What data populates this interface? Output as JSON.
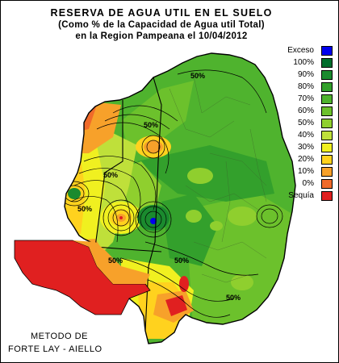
{
  "title": {
    "line1": "RESERVA DE AGUA UTIL EN EL SUELO",
    "line2": "(Como % de la Capacidad de Agua util Total)",
    "line3": "en la Region Pampeana el 10/04/2012"
  },
  "legend": [
    {
      "label": "Exceso",
      "color": "#0000ee"
    },
    {
      "label": "100%",
      "color": "#006d2c"
    },
    {
      "label": "90%",
      "color": "#1a8a2e"
    },
    {
      "label": "80%",
      "color": "#33a02c"
    },
    {
      "label": "70%",
      "color": "#4fb32e"
    },
    {
      "label": "60%",
      "color": "#6cc12c"
    },
    {
      "label": "50%",
      "color": "#8fcf2e"
    },
    {
      "label": "40%",
      "color": "#bfe03a"
    },
    {
      "label": "30%",
      "color": "#f0f020"
    },
    {
      "label": "20%",
      "color": "#ffd21e"
    },
    {
      "label": "10%",
      "color": "#f7a12a"
    },
    {
      "label": "0%",
      "color": "#f06a2a"
    },
    {
      "label": "Sequía",
      "color": "#e02020"
    }
  ],
  "contour_labels": [
    "50%",
    "50%",
    "50%",
    "50%",
    "50%",
    "50%",
    "50%"
  ],
  "method": {
    "line1": "METODO DE",
    "line2": "FORTE LAY - AIELLO"
  }
}
